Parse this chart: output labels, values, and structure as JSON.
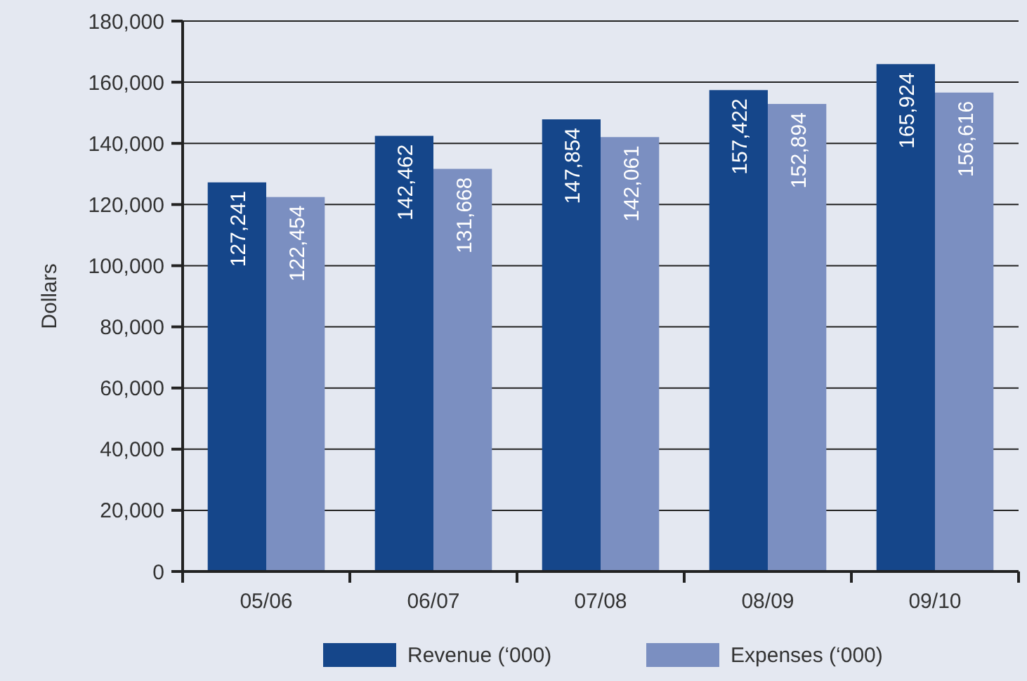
{
  "chart_data": {
    "type": "bar",
    "ylabel": "Dollars",
    "categories": [
      "05/06",
      "06/07",
      "07/08",
      "08/09",
      "09/10"
    ],
    "series": [
      {
        "name": "Revenue (‘000)",
        "color": "#15468a",
        "values": [
          127241,
          142462,
          147854,
          157422,
          165924
        ],
        "value_labels": [
          "127,241",
          "142,462",
          "147,854",
          "157,422",
          "165,924"
        ]
      },
      {
        "name": "Expenses (‘000)",
        "color": "#7b8fc1",
        "values": [
          122454,
          131668,
          142061,
          152894,
          156616
        ],
        "value_labels": [
          "122,454",
          "131,668",
          "142,061",
          "152,894",
          "156,616"
        ]
      }
    ],
    "ylim": [
      0,
      180000
    ],
    "yticks": [
      {
        "value": 0,
        "label": "0"
      },
      {
        "value": 20000,
        "label": "20,000"
      },
      {
        "value": 40000,
        "label": "40,000"
      },
      {
        "value": 60000,
        "label": "60,000"
      },
      {
        "value": 80000,
        "label": "80,000"
      },
      {
        "value": 100000,
        "label": "100,000"
      },
      {
        "value": 120000,
        "label": "120,000"
      },
      {
        "value": 140000,
        "label": "140,000"
      },
      {
        "value": 160000,
        "label": "160,000"
      },
      {
        "value": 180000,
        "label": "180,000"
      }
    ],
    "grid": "y",
    "legend": "bottom"
  }
}
